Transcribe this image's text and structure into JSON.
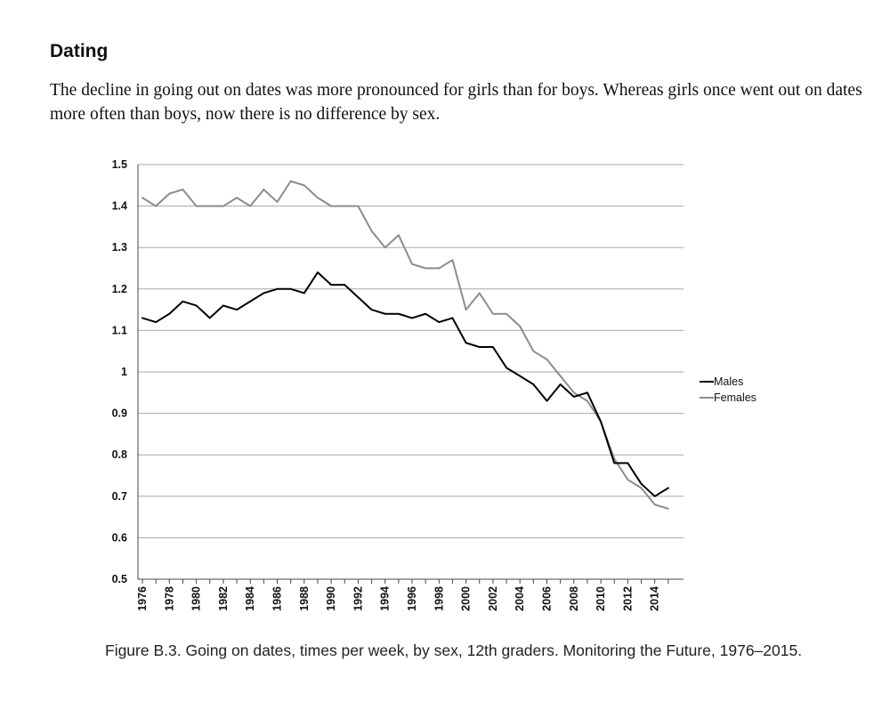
{
  "section": {
    "heading": "Dating",
    "paragraph": "The decline in going out on dates was more pronounced for girls than for boys. Whereas girls once went out on dates more often than boys, now there is no difference by sex."
  },
  "caption": "Figure B.3. Going on dates, times per week, by sex, 12th graders. Monitoring the Future, 1976–2015.",
  "chart_data": {
    "type": "line",
    "title": "",
    "xlabel": "",
    "ylabel": "",
    "x": [
      1976,
      1977,
      1978,
      1979,
      1980,
      1981,
      1982,
      1983,
      1984,
      1985,
      1986,
      1987,
      1988,
      1989,
      1990,
      1991,
      1992,
      1993,
      1994,
      1995,
      1996,
      1997,
      1998,
      1999,
      2000,
      2001,
      2002,
      2003,
      2004,
      2005,
      2006,
      2007,
      2008,
      2009,
      2010,
      2011,
      2012,
      2013,
      2014,
      2015
    ],
    "x_tick_labels": [
      "1976",
      "1978",
      "1980",
      "1982",
      "1984",
      "1986",
      "1988",
      "1990",
      "1992",
      "1994",
      "1996",
      "1998",
      "2000",
      "2002",
      "2004",
      "2006",
      "2008",
      "2010",
      "2012",
      "2014"
    ],
    "y_tick_labels": [
      "1.5",
      "1.4",
      "1.3",
      "1.2",
      "1.1",
      "1",
      "0.9",
      "0.8",
      "0.7",
      "0.6",
      "0.5"
    ],
    "ylim": [
      0.5,
      1.5
    ],
    "grid": true,
    "legend_position": "right",
    "series": [
      {
        "name": "Males",
        "color": "#000000",
        "values": [
          1.13,
          1.12,
          1.14,
          1.17,
          1.16,
          1.13,
          1.16,
          1.15,
          1.17,
          1.19,
          1.2,
          1.2,
          1.19,
          1.24,
          1.21,
          1.21,
          1.18,
          1.15,
          1.14,
          1.14,
          1.13,
          1.14,
          1.12,
          1.13,
          1.07,
          1.06,
          1.06,
          1.01,
          0.99,
          0.97,
          0.93,
          0.97,
          0.94,
          0.95,
          0.88,
          0.78,
          0.78,
          0.73,
          0.7,
          0.72
        ]
      },
      {
        "name": "Females",
        "color": "#8c8c8c",
        "values": [
          1.42,
          1.4,
          1.43,
          1.44,
          1.4,
          1.4,
          1.4,
          1.42,
          1.4,
          1.44,
          1.41,
          1.46,
          1.45,
          1.42,
          1.4,
          1.4,
          1.4,
          1.34,
          1.3,
          1.33,
          1.26,
          1.25,
          1.25,
          1.27,
          1.15,
          1.19,
          1.14,
          1.14,
          1.11,
          1.05,
          1.03,
          0.99,
          0.95,
          0.93,
          0.88,
          0.79,
          0.74,
          0.72,
          0.68,
          0.67
        ]
      }
    ]
  }
}
